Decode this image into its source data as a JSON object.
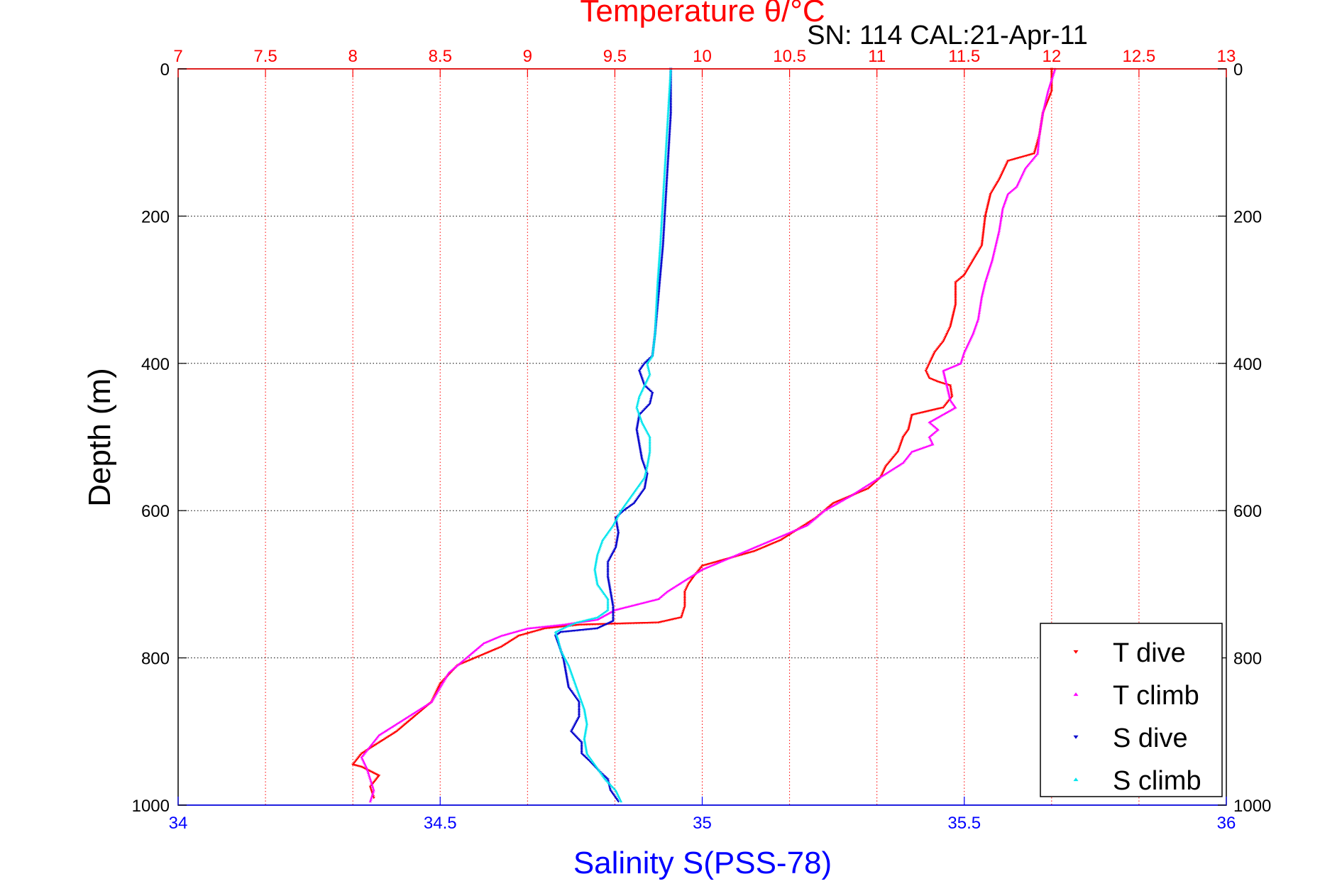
{
  "chart_data": {
    "type": "scatter",
    "title": "Temperature θ/°C",
    "subtitle": "SN: 114  CAL:21-Apr-11",
    "ylabel": "Depth (m)",
    "xlabel": "Salinity S(PSS-78)",
    "top_axis": {
      "label": "Temperature θ/°C",
      "range": [
        7,
        13
      ],
      "ticks": [
        "7",
        "7.5",
        "8",
        "8.5",
        "9",
        "9.5",
        "10",
        "10.5",
        "11",
        "11.5",
        "12",
        "12.5",
        "13"
      ],
      "color": "#ff0000"
    },
    "bottom_axis": {
      "label": "Salinity S(PSS-78)",
      "range": [
        34,
        36
      ],
      "ticks": [
        "34",
        "34.5",
        "35",
        "35.5",
        "36"
      ],
      "color": "#0000ff"
    },
    "y_axis": {
      "range": [
        0,
        1000
      ],
      "reversed": true,
      "ticks": [
        "0",
        "200",
        "400",
        "600",
        "800",
        "1000"
      ]
    },
    "grid": true,
    "legend": {
      "position": "bottom-right",
      "entries": [
        {
          "label": "T dive",
          "color": "#ff0000",
          "marker": "down-triangle"
        },
        {
          "label": "T climb",
          "color": "#ff00ff",
          "marker": "up-triangle"
        },
        {
          "label": "S dive",
          "color": "#0000cc",
          "marker": "down-triangle"
        },
        {
          "label": "S climb",
          "color": "#00e5ee",
          "marker": "up-triangle"
        }
      ]
    },
    "series": [
      {
        "name": "T dive",
        "axis": "temperature",
        "color": "#ff0000",
        "points": [
          [
            12.0,
            0
          ],
          [
            12.0,
            30
          ],
          [
            11.95,
            60
          ],
          [
            11.93,
            90
          ],
          [
            11.9,
            115
          ],
          [
            11.75,
            125
          ],
          [
            11.7,
            150
          ],
          [
            11.65,
            170
          ],
          [
            11.62,
            200
          ],
          [
            11.6,
            240
          ],
          [
            11.55,
            260
          ],
          [
            11.5,
            280
          ],
          [
            11.45,
            290
          ],
          [
            11.45,
            320
          ],
          [
            11.42,
            350
          ],
          [
            11.38,
            370
          ],
          [
            11.33,
            385
          ],
          [
            11.3,
            400
          ],
          [
            11.28,
            410
          ],
          [
            11.3,
            420
          ],
          [
            11.35,
            425
          ],
          [
            11.42,
            430
          ],
          [
            11.43,
            445
          ],
          [
            11.38,
            460
          ],
          [
            11.2,
            470
          ],
          [
            11.18,
            490
          ],
          [
            11.15,
            500
          ],
          [
            11.12,
            520
          ],
          [
            11.05,
            540
          ],
          [
            11.02,
            555
          ],
          [
            10.95,
            570
          ],
          [
            10.85,
            580
          ],
          [
            10.75,
            590
          ],
          [
            10.65,
            610
          ],
          [
            10.45,
            640
          ],
          [
            10.3,
            655
          ],
          [
            10.0,
            675
          ],
          [
            9.95,
            690
          ],
          [
            9.92,
            700
          ],
          [
            9.9,
            710
          ],
          [
            9.9,
            730
          ],
          [
            9.88,
            745
          ],
          [
            9.75,
            752
          ],
          [
            9.3,
            755
          ],
          [
            9.1,
            760
          ],
          [
            8.95,
            770
          ],
          [
            8.85,
            785
          ],
          [
            8.75,
            795
          ],
          [
            8.6,
            810
          ],
          [
            8.5,
            835
          ],
          [
            8.45,
            860
          ],
          [
            8.35,
            880
          ],
          [
            8.25,
            900
          ],
          [
            8.15,
            915
          ],
          [
            8.05,
            930
          ],
          [
            8.0,
            945
          ],
          [
            8.05,
            948
          ],
          [
            8.15,
            960
          ],
          [
            8.1,
            975
          ],
          [
            8.12,
            990
          ]
        ]
      },
      {
        "name": "T climb",
        "axis": "temperature",
        "color": "#ff00ff",
        "points": [
          [
            12.02,
            0
          ],
          [
            11.98,
            30
          ],
          [
            11.95,
            60
          ],
          [
            11.93,
            90
          ],
          [
            11.92,
            115
          ],
          [
            11.85,
            135
          ],
          [
            11.8,
            160
          ],
          [
            11.75,
            170
          ],
          [
            11.72,
            190
          ],
          [
            11.7,
            220
          ],
          [
            11.66,
            260
          ],
          [
            11.62,
            290
          ],
          [
            11.6,
            310
          ],
          [
            11.58,
            340
          ],
          [
            11.55,
            360
          ],
          [
            11.5,
            385
          ],
          [
            11.48,
            400
          ],
          [
            11.38,
            410
          ],
          [
            11.4,
            430
          ],
          [
            11.42,
            450
          ],
          [
            11.45,
            460
          ],
          [
            11.3,
            480
          ],
          [
            11.35,
            490
          ],
          [
            11.3,
            500
          ],
          [
            11.32,
            510
          ],
          [
            11.2,
            520
          ],
          [
            11.15,
            535
          ],
          [
            11.05,
            550
          ],
          [
            10.95,
            565
          ],
          [
            10.85,
            580
          ],
          [
            10.7,
            600
          ],
          [
            10.6,
            620
          ],
          [
            10.4,
            640
          ],
          [
            10.2,
            660
          ],
          [
            10.0,
            680
          ],
          [
            9.9,
            695
          ],
          [
            9.8,
            710
          ],
          [
            9.75,
            720
          ],
          [
            9.5,
            735
          ],
          [
            9.4,
            748
          ],
          [
            9.2,
            755
          ],
          [
            9.0,
            760
          ],
          [
            8.85,
            770
          ],
          [
            8.75,
            780
          ],
          [
            8.65,
            800
          ],
          [
            8.55,
            820
          ],
          [
            8.5,
            840
          ],
          [
            8.45,
            860
          ],
          [
            8.35,
            875
          ],
          [
            8.25,
            890
          ],
          [
            8.15,
            905
          ],
          [
            8.1,
            920
          ],
          [
            8.05,
            935
          ],
          [
            8.08,
            950
          ],
          [
            8.1,
            965
          ],
          [
            8.12,
            980
          ],
          [
            8.1,
            995
          ]
        ]
      },
      {
        "name": "S dive",
        "axis": "salinity",
        "color": "#0000cc",
        "points": [
          [
            34.94,
            0
          ],
          [
            34.94,
            60
          ],
          [
            34.935,
            120
          ],
          [
            34.93,
            180
          ],
          [
            34.925,
            240
          ],
          [
            34.92,
            280
          ],
          [
            34.915,
            320
          ],
          [
            34.91,
            360
          ],
          [
            34.905,
            390
          ],
          [
            34.89,
            400
          ],
          [
            34.88,
            410
          ],
          [
            34.885,
            420
          ],
          [
            34.89,
            430
          ],
          [
            34.905,
            440
          ],
          [
            34.9,
            455
          ],
          [
            34.88,
            470
          ],
          [
            34.875,
            490
          ],
          [
            34.88,
            510
          ],
          [
            34.885,
            530
          ],
          [
            34.895,
            550
          ],
          [
            34.89,
            570
          ],
          [
            34.87,
            590
          ],
          [
            34.85,
            600
          ],
          [
            34.835,
            610
          ],
          [
            34.84,
            630
          ],
          [
            34.835,
            650
          ],
          [
            34.82,
            670
          ],
          [
            34.82,
            690
          ],
          [
            34.825,
            710
          ],
          [
            34.83,
            730
          ],
          [
            34.83,
            750
          ],
          [
            34.8,
            760
          ],
          [
            34.73,
            765
          ],
          [
            34.72,
            770
          ],
          [
            34.725,
            780
          ],
          [
            34.73,
            790
          ],
          [
            34.735,
            800
          ],
          [
            34.74,
            820
          ],
          [
            34.745,
            840
          ],
          [
            34.765,
            860
          ],
          [
            34.765,
            880
          ],
          [
            34.75,
            900
          ],
          [
            34.77,
            915
          ],
          [
            34.77,
            930
          ],
          [
            34.785,
            940
          ],
          [
            34.805,
            955
          ],
          [
            34.82,
            965
          ],
          [
            34.825,
            980
          ],
          [
            34.84,
            995
          ]
        ]
      },
      {
        "name": "S climb",
        "axis": "salinity",
        "color": "#00e5ee",
        "points": [
          [
            34.94,
            0
          ],
          [
            34.935,
            60
          ],
          [
            34.93,
            120
          ],
          [
            34.925,
            180
          ],
          [
            34.92,
            240
          ],
          [
            34.915,
            290
          ],
          [
            34.912,
            330
          ],
          [
            34.91,
            360
          ],
          [
            34.905,
            390
          ],
          [
            34.895,
            400
          ],
          [
            34.9,
            415
          ],
          [
            34.89,
            430
          ],
          [
            34.88,
            445
          ],
          [
            34.875,
            460
          ],
          [
            34.885,
            480
          ],
          [
            34.9,
            500
          ],
          [
            34.9,
            520
          ],
          [
            34.895,
            540
          ],
          [
            34.89,
            555
          ],
          [
            34.875,
            570
          ],
          [
            34.86,
            585
          ],
          [
            34.845,
            600
          ],
          [
            34.83,
            620
          ],
          [
            34.81,
            640
          ],
          [
            34.8,
            660
          ],
          [
            34.795,
            680
          ],
          [
            34.8,
            700
          ],
          [
            34.82,
            720
          ],
          [
            34.82,
            735
          ],
          [
            34.8,
            745
          ],
          [
            34.76,
            752
          ],
          [
            34.74,
            758
          ],
          [
            34.72,
            765
          ],
          [
            34.725,
            775
          ],
          [
            34.73,
            790
          ],
          [
            34.745,
            810
          ],
          [
            34.755,
            830
          ],
          [
            34.765,
            850
          ],
          [
            34.775,
            870
          ],
          [
            34.78,
            890
          ],
          [
            34.775,
            910
          ],
          [
            34.78,
            930
          ],
          [
            34.8,
            950
          ],
          [
            34.815,
            965
          ],
          [
            34.835,
            980
          ],
          [
            34.845,
            995
          ]
        ]
      }
    ]
  }
}
